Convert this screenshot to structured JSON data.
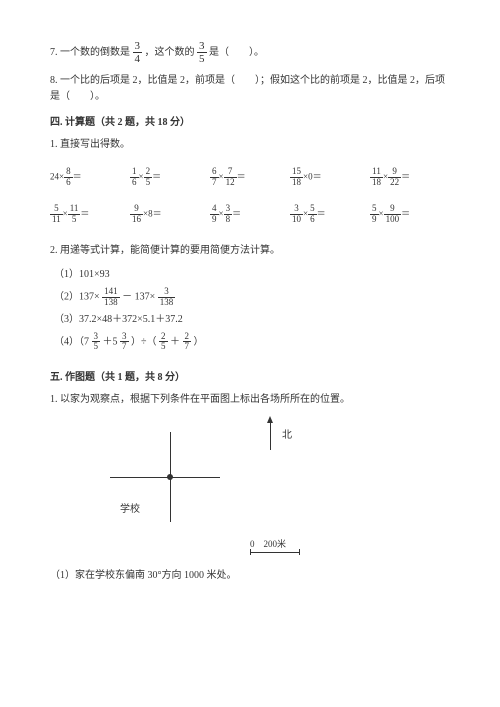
{
  "q7": {
    "prefix": "7. 一个数的倒数是",
    "frac1": {
      "num": "3",
      "den": "4"
    },
    "mid": "，这个数的",
    "frac2": {
      "num": "3",
      "den": "5"
    },
    "suffix": "是（　　）。"
  },
  "q8": "8. 一个比的后项是 2，比值是 2，前项是（　　）；假如这个比的前项是 2，比值是 2，后项是（　　）。",
  "section4": "四. 计算题（共 2 题，共 18 分）",
  "q4_1": "1. 直接写出得数。",
  "calc": [
    {
      "pre": "24×",
      "frac1": {
        "num": "8",
        "den": "6"
      },
      "mid": "＝"
    },
    {
      "frac1": {
        "num": "1",
        "den": "6"
      },
      "mid": "×",
      "frac2": {
        "num": "2",
        "den": "5"
      },
      "post": "＝"
    },
    {
      "frac1": {
        "num": "6",
        "den": "7"
      },
      "mid": "×",
      "frac2": {
        "num": "7",
        "den": "12"
      },
      "post": "＝"
    },
    {
      "frac1": {
        "num": "15",
        "den": "18"
      },
      "mid": "×0＝"
    },
    {
      "frac1": {
        "num": "11",
        "den": "18"
      },
      "mid": "×",
      "frac2": {
        "num": "9",
        "den": "22"
      },
      "post": "＝"
    },
    {
      "frac1": {
        "num": "5",
        "den": "11"
      },
      "mid": "×",
      "frac2": {
        "num": "11",
        "den": "5"
      },
      "post": "＝"
    },
    {
      "frac1": {
        "num": "9",
        "den": "16"
      },
      "mid": "×8＝"
    },
    {
      "frac1": {
        "num": "4",
        "den": "9"
      },
      "mid": "×",
      "frac2": {
        "num": "3",
        "den": "8"
      },
      "post": "＝"
    },
    {
      "frac1": {
        "num": "3",
        "den": "10"
      },
      "mid": "×",
      "frac2": {
        "num": "5",
        "den": "6"
      },
      "post": "＝"
    },
    {
      "frac1": {
        "num": "5",
        "den": "9"
      },
      "mid": "×",
      "frac2": {
        "num": "9",
        "den": "100"
      },
      "post": "＝"
    }
  ],
  "q4_2": "2. 用递等式计算，能简便计算的要用简便方法计算。",
  "sub": {
    "a": "（1）101×93",
    "b": {
      "pre": "（2）137×",
      "f1": {
        "num": "141",
        "den": "138"
      },
      "mid": " － 137×",
      "f2": {
        "num": "3",
        "den": "138"
      }
    },
    "c": "（3）37.2×48＋372×5.1＋37.2",
    "d": {
      "pre": "（4）（7",
      "f1": {
        "num": "3",
        "den": "5"
      },
      "m1": " ＋5",
      "f2": {
        "num": "3",
        "den": "7"
      },
      "m2": "）÷（",
      "f3": {
        "num": "2",
        "den": "5"
      },
      "m3": " ＋ ",
      "f4": {
        "num": "2",
        "den": "7"
      },
      "post": "）"
    }
  },
  "section5": "五. 作图题（共 1 题，共 8 分）",
  "q5_1": "1. 以家为观察点，根据下列条件在平面图上标出各场所所在的位置。",
  "diagram": {
    "north": "北",
    "school": "学校",
    "scale": "0　200米"
  },
  "q5_1_1": "（1）家在学校东偏南 30°方向 1000 米处。"
}
